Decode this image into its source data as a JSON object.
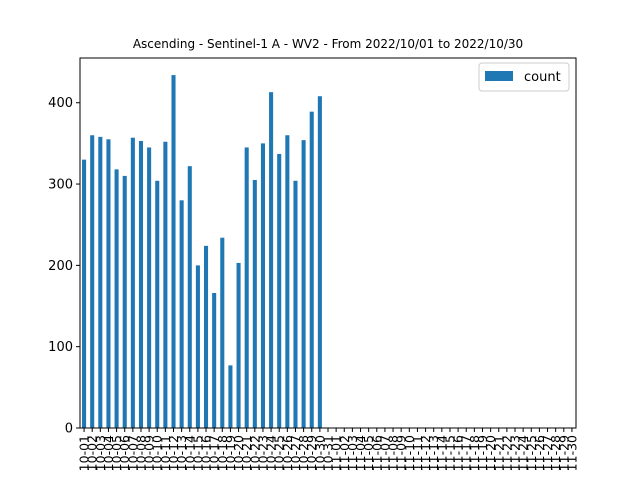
{
  "chart_data": {
    "type": "bar",
    "title": "Ascending - Sentinel-1 A - WV2 - From 2022/10/01 to 2022/10/30",
    "xlabel": "",
    "ylabel": "",
    "ylim": [
      0,
      455
    ],
    "yticks": [
      0,
      100,
      200,
      300,
      400
    ],
    "grid": false,
    "legend_position": "top-right",
    "bar_color": "#1f77b4",
    "categories": [
      "10-01",
      "10-02",
      "10-03",
      "10-04",
      "10-05",
      "10-06",
      "10-07",
      "10-08",
      "10-09",
      "10-10",
      "10-11",
      "10-12",
      "10-13",
      "10-14",
      "10-15",
      "10-16",
      "10-17",
      "10-18",
      "10-19",
      "10-20",
      "10-21",
      "10-22",
      "10-23",
      "10-24",
      "10-25",
      "10-26",
      "10-27",
      "10-28",
      "10-29",
      "10-30",
      "10-31",
      "11-01",
      "11-02",
      "11-03",
      "11-04",
      "11-05",
      "11-06",
      "11-07",
      "11-08",
      "11-09",
      "11-10",
      "11-11",
      "11-12",
      "11-13",
      "11-14",
      "11-15",
      "11-16",
      "11-17",
      "11-18",
      "11-19",
      "11-20",
      "11-21",
      "11-22",
      "11-23",
      "11-24",
      "11-25",
      "11-26",
      "11-27",
      "11-28",
      "11-29",
      "11-30"
    ],
    "series": [
      {
        "name": "count",
        "values": [
          330,
          360,
          358,
          355,
          318,
          310,
          357,
          353,
          345,
          304,
          352,
          434,
          280,
          322,
          200,
          224,
          166,
          234,
          77,
          203,
          345,
          305,
          350,
          413,
          337,
          360,
          304,
          354,
          389,
          408,
          0,
          0,
          0,
          0,
          0,
          0,
          0,
          0,
          0,
          0,
          0,
          0,
          0,
          0,
          0,
          0,
          0,
          0,
          0,
          0,
          0,
          0,
          0,
          0,
          0,
          0,
          0,
          0,
          0,
          0,
          0
        ]
      }
    ]
  }
}
